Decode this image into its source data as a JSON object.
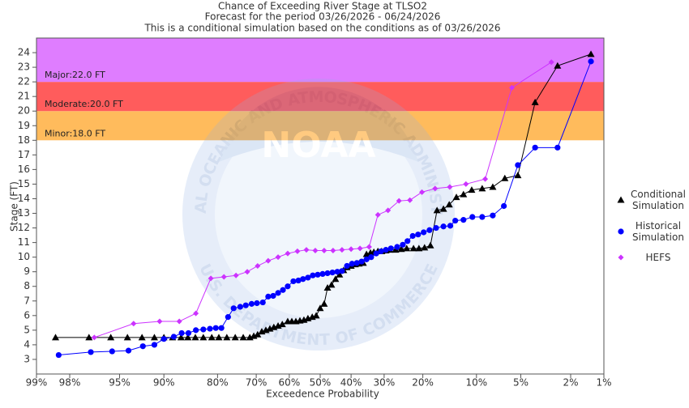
{
  "chart_data": {
    "type": "line",
    "title": "Chance of Exceeding River Stage at TLSO2",
    "subtitle": [
      "Forecast for the period 03/26/2026 - 06/24/2026",
      "This is a conditional simulation based on the conditions as of 03/26/2026"
    ],
    "x_label": "Exceedence Probability",
    "y_label": "Stage (FT)",
    "xscale": "probability",
    "xlim": [
      99,
      1
    ],
    "xticks": [
      {
        "value": 99,
        "label": "99%"
      },
      {
        "value": 98,
        "label": "98%"
      },
      {
        "value": 95,
        "label": "95%"
      },
      {
        "value": 90,
        "label": "90%"
      },
      {
        "value": 80,
        "label": "80%"
      },
      {
        "value": 70,
        "label": "70%"
      },
      {
        "value": 60,
        "label": "60%"
      },
      {
        "value": 50,
        "label": "50%"
      },
      {
        "value": 40,
        "label": "40%"
      },
      {
        "value": 30,
        "label": "30%"
      },
      {
        "value": 20,
        "label": "20%"
      },
      {
        "value": 10,
        "label": "10%"
      },
      {
        "value": 5,
        "label": "5%"
      },
      {
        "value": 2,
        "label": "2%"
      },
      {
        "value": 1,
        "label": "1%"
      }
    ],
    "ylim": [
      2,
      25
    ],
    "yticks": [
      3,
      4,
      5,
      6,
      7,
      8,
      9,
      10,
      11,
      12,
      13,
      14,
      15,
      16,
      17,
      18,
      19,
      20,
      21,
      22,
      23,
      24
    ],
    "legend": "right",
    "flood_stages": [
      {
        "label": "Minor:18.0 FT",
        "value": 18,
        "color": "#ffbb5c"
      },
      {
        "label": "Moderate:20.0 FT",
        "value": 20,
        "color": "#ff5c5c"
      },
      {
        "label": "Major:22.0 FT",
        "value": 22,
        "color": "#df7dff"
      }
    ],
    "watermark": {
      "text": "NOAA",
      "upper_ring": "NATIONAL OCEANIC AND ATMOSPHERIC ADMINISTRATION",
      "lower_ring": "U.S. DEPARTMENT OF COMMERCE"
    },
    "series": [
      {
        "name": "Conditional Simulation",
        "color": "#000000",
        "marker": "triangle",
        "x": [
          98.5,
          97.1,
          95.7,
          94.3,
          92.8,
          91.3,
          90.0,
          88.7,
          87.3,
          86.1,
          84.7,
          83.1,
          81.3,
          79.7,
          77.8,
          75.7,
          73.6,
          71.8,
          70.7,
          69.6,
          68.4,
          67.2,
          66.0,
          64.8,
          63.5,
          62.2,
          60.5,
          59.2,
          57.9,
          56.6,
          55.3,
          54.0,
          52.6,
          51.3,
          50.0,
          48.7,
          47.6,
          46.3,
          45.0,
          43.7,
          42.4,
          41.3,
          40.0,
          38.7,
          37.5,
          36.2,
          35.2,
          34.0,
          33.0,
          31.8,
          30.7,
          29.5,
          28.4,
          26.8,
          25.3,
          23.9,
          22.2,
          20.9,
          19.6,
          18.3,
          16.9,
          15.6,
          14.5,
          13.2,
          12.0,
          10.7,
          9.2,
          7.85,
          6.5,
          5.25,
          3.9,
          2.58,
          1.32
        ],
        "values": [
          4.5,
          4.5,
          4.5,
          4.5,
          4.5,
          4.5,
          4.5,
          4.5,
          4.5,
          4.5,
          4.5,
          4.5,
          4.5,
          4.5,
          4.5,
          4.5,
          4.5,
          4.5,
          4.6,
          4.7,
          4.9,
          5.0,
          5.1,
          5.2,
          5.3,
          5.4,
          5.6,
          5.6,
          5.6,
          5.65,
          5.7,
          5.8,
          5.9,
          6.0,
          6.5,
          6.8,
          7.9,
          8.1,
          8.5,
          8.8,
          9.1,
          9.3,
          9.4,
          9.5,
          9.55,
          9.6,
          10.2,
          10.3,
          10.35,
          10.4,
          10.4,
          10.45,
          10.5,
          10.5,
          10.55,
          10.6,
          10.6,
          10.6,
          10.65,
          10.8,
          13.2,
          13.3,
          13.6,
          14.1,
          14.3,
          14.6,
          14.7,
          14.8,
          15.4,
          15.6,
          20.6,
          23.1,
          23.9
        ]
      },
      {
        "name": "Historical Simulation",
        "color": "#0000ff",
        "marker": "circle",
        "x": [
          98.4,
          97.0,
          95.6,
          94.2,
          92.7,
          91.3,
          90.0,
          88.5,
          87.2,
          86.0,
          84.6,
          83.1,
          81.7,
          80.4,
          79.1,
          77.5,
          76.1,
          74.4,
          72.9,
          71.3,
          69.8,
          68.1,
          66.5,
          65.0,
          63.5,
          62.0,
          60.5,
          58.7,
          57.1,
          55.6,
          54.0,
          52.4,
          50.8,
          49.2,
          47.6,
          46.0,
          44.4,
          42.9,
          41.3,
          39.7,
          38.2,
          36.7,
          35.2,
          33.8,
          32.3,
          30.9,
          29.5,
          28.1,
          26.4,
          24.9,
          23.7,
          22.4,
          21.1,
          19.8,
          18.5,
          17.1,
          15.6,
          14.3,
          13.4,
          12.0,
          10.6,
          9.2,
          7.85,
          6.6,
          5.25,
          3.9,
          2.58,
          1.32
        ],
        "values": [
          3.3,
          3.5,
          3.55,
          3.6,
          3.9,
          4.0,
          4.4,
          4.55,
          4.8,
          4.8,
          5.0,
          5.05,
          5.1,
          5.15,
          5.15,
          5.9,
          6.5,
          6.6,
          6.7,
          6.8,
          6.85,
          6.9,
          7.3,
          7.35,
          7.55,
          7.75,
          8.0,
          8.35,
          8.4,
          8.5,
          8.6,
          8.75,
          8.8,
          8.85,
          8.9,
          8.95,
          9.0,
          9.05,
          9.4,
          9.55,
          9.6,
          9.7,
          9.85,
          10.0,
          10.25,
          10.4,
          10.5,
          10.6,
          10.7,
          10.85,
          11.1,
          11.45,
          11.55,
          11.7,
          11.85,
          12.0,
          12.1,
          12.15,
          12.5,
          12.55,
          12.75,
          12.75,
          12.85,
          13.5,
          16.3,
          17.5,
          17.5,
          23.4
        ]
      },
      {
        "name": "HEFS",
        "color": "#cc33ff",
        "marker": "diamond",
        "x": [
          96.8,
          93.7,
          90.6,
          87.6,
          84.6,
          81.5,
          78.5,
          75.5,
          72.5,
          69.6,
          66.5,
          63.5,
          60.5,
          57.4,
          54.5,
          51.6,
          48.7,
          45.8,
          42.9,
          40.0,
          37.2,
          34.4,
          31.8,
          28.9,
          25.9,
          23.1,
          20.2,
          17.3,
          14.4,
          11.6,
          8.8,
          5.8,
          2.9
        ],
        "values": [
          4.5,
          5.45,
          5.6,
          5.6,
          6.15,
          8.55,
          8.65,
          8.75,
          9.0,
          9.4,
          9.75,
          10.0,
          10.25,
          10.4,
          10.5,
          10.45,
          10.45,
          10.45,
          10.5,
          10.55,
          10.6,
          10.7,
          12.9,
          13.2,
          13.85,
          13.9,
          14.45,
          14.7,
          14.8,
          15.0,
          15.35,
          21.6,
          23.35
        ]
      }
    ]
  }
}
